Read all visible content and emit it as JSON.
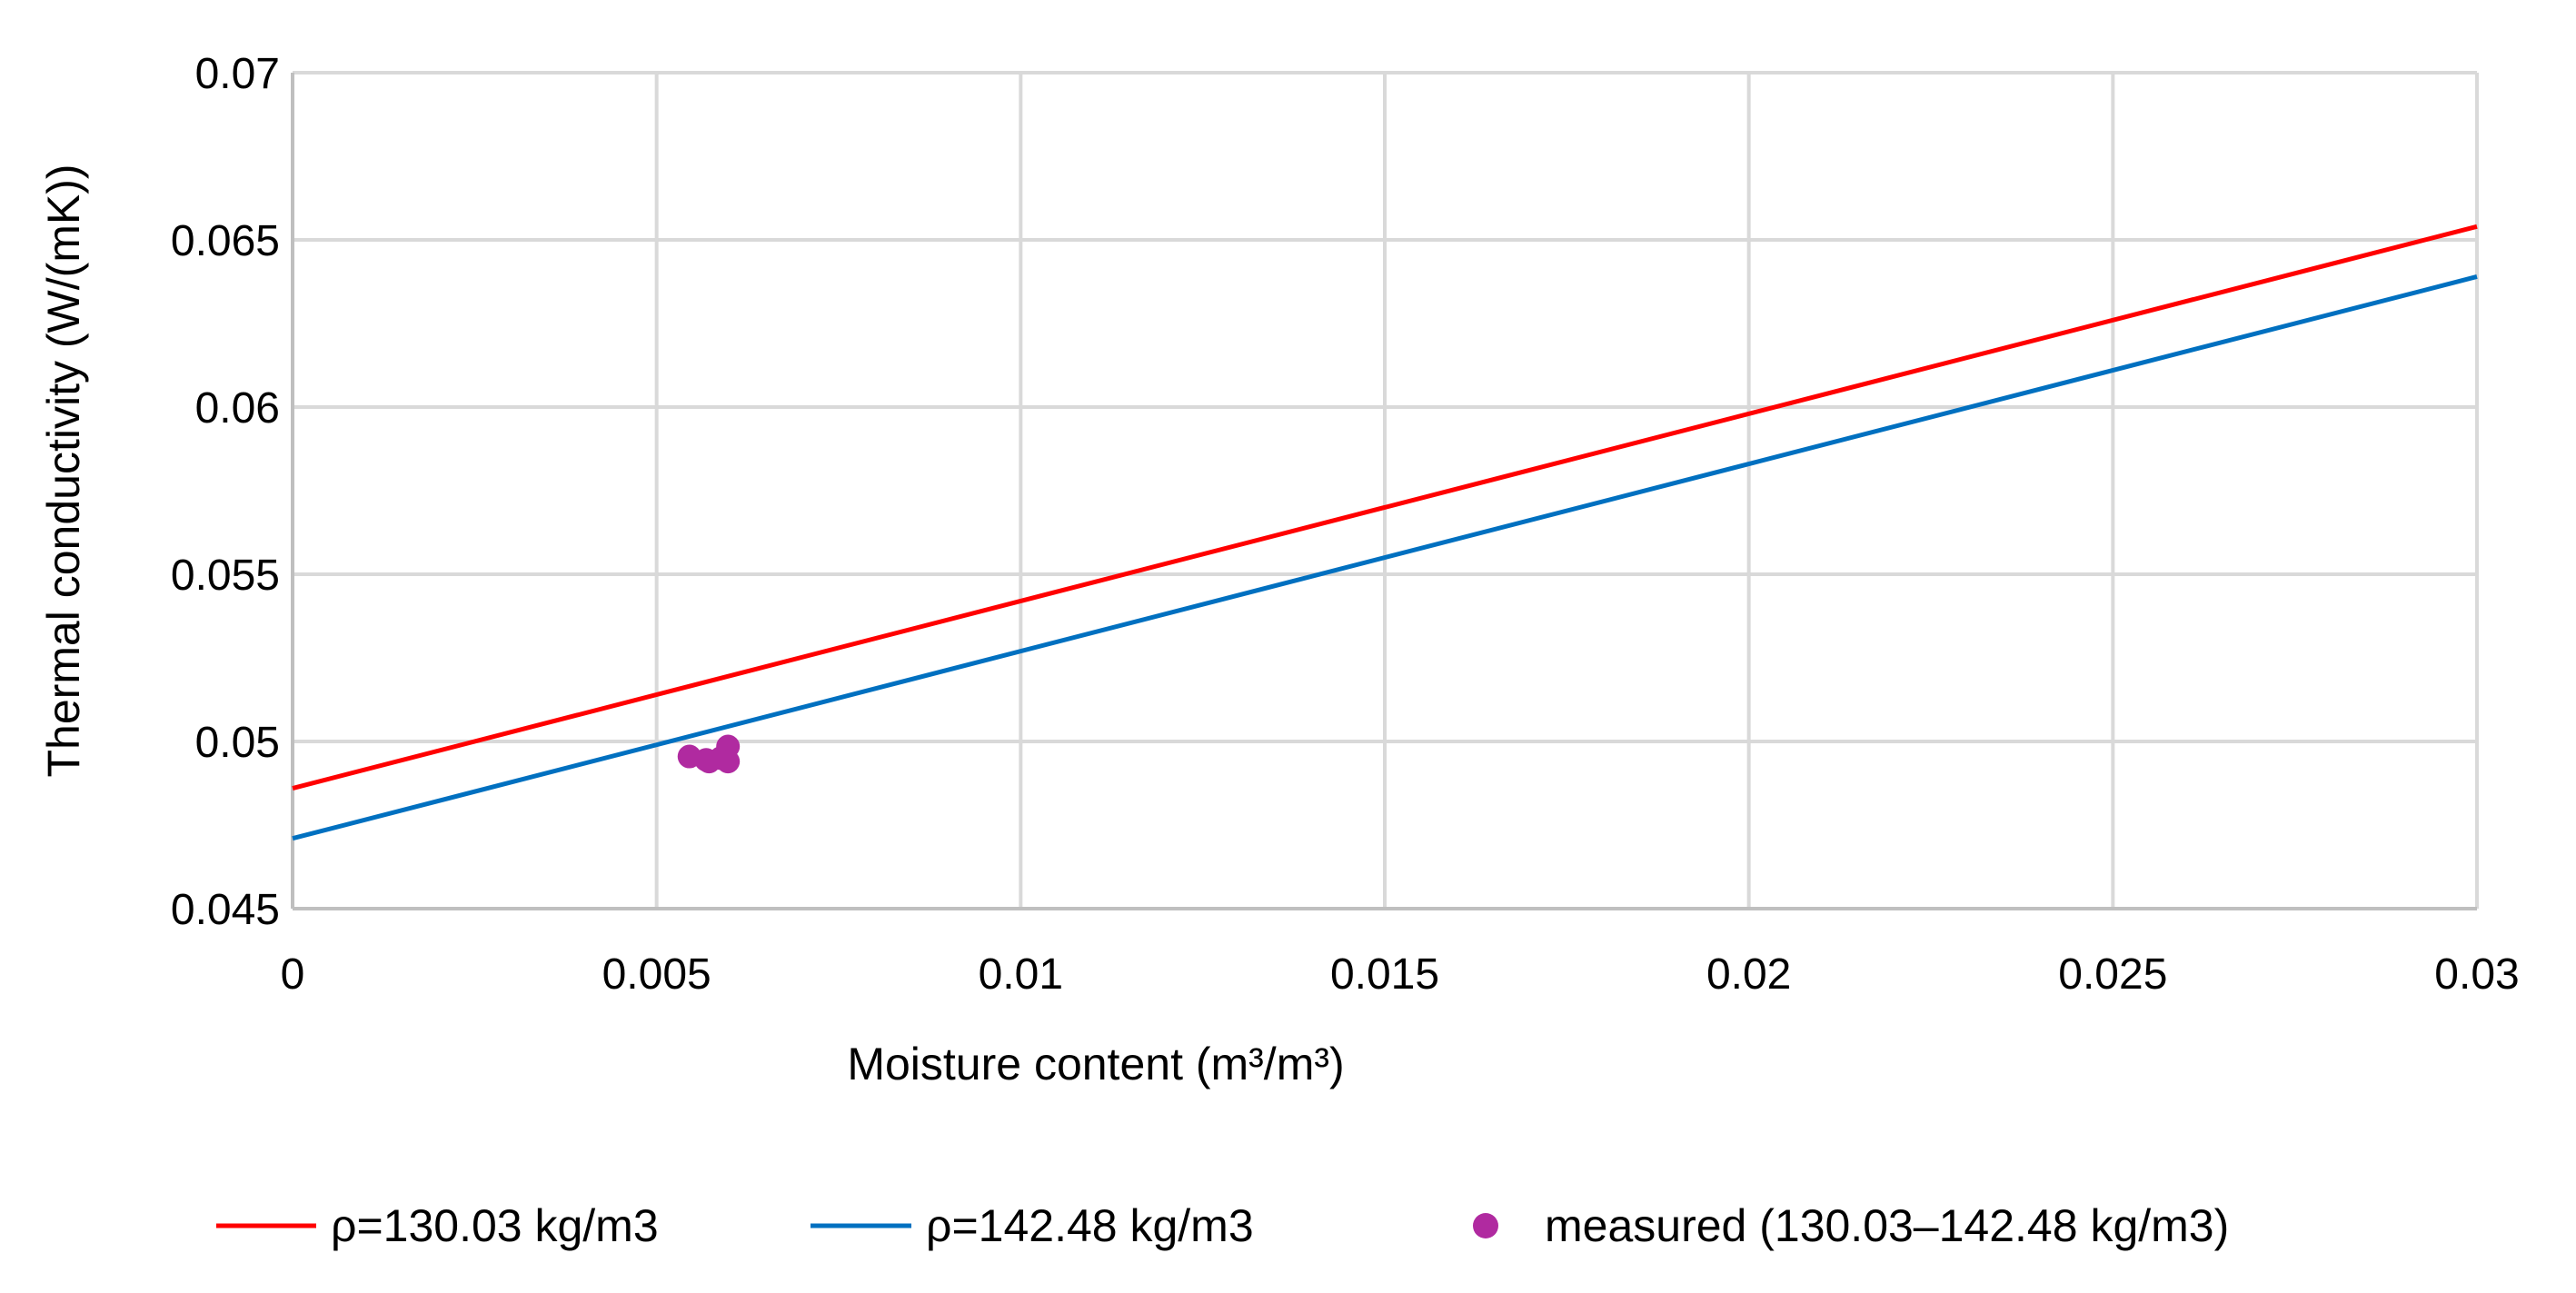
{
  "chart_data": {
    "type": "line",
    "title": "",
    "xlabel": "Moisture content (m³/m³)",
    "ylabel": "Thermal conductivity (W/(mK))",
    "xlim": [
      0,
      0.03
    ],
    "ylim": [
      0.045,
      0.07
    ],
    "x_ticks": [
      0,
      0.005,
      0.01,
      0.015,
      0.02,
      0.025,
      0.03
    ],
    "x_tick_labels": [
      "0",
      "0.005",
      "0.01",
      "0.015",
      "0.02",
      "0.025",
      "0.03"
    ],
    "y_ticks": [
      0.045,
      0.05,
      0.055,
      0.06,
      0.065,
      0.07
    ],
    "y_tick_labels": [
      "0.045",
      "0.05",
      "0.055",
      "0.06",
      "0.065",
      "0.07"
    ],
    "grid": true,
    "legend_position": "bottom",
    "series": [
      {
        "name": "ρ=130.03  kg/m3",
        "type": "line",
        "color": "#ff0000",
        "x": [
          0,
          0.03
        ],
        "y": [
          0.0486,
          0.0654
        ]
      },
      {
        "name": "ρ=142.48  kg/m3",
        "type": "line",
        "color": "#0070c0",
        "x": [
          0,
          0.03
        ],
        "y": [
          0.0471,
          0.0639
        ]
      },
      {
        "name": "measured (130.03–142.48  kg/m3)",
        "type": "scatter",
        "color": "#b02aa0",
        "x": [
          0.00545,
          0.00568,
          0.00572,
          0.00588,
          0.00598,
          0.00598
        ],
        "y": [
          0.04955,
          0.04945,
          0.0494,
          0.0495,
          0.04985,
          0.0494
        ]
      }
    ]
  }
}
